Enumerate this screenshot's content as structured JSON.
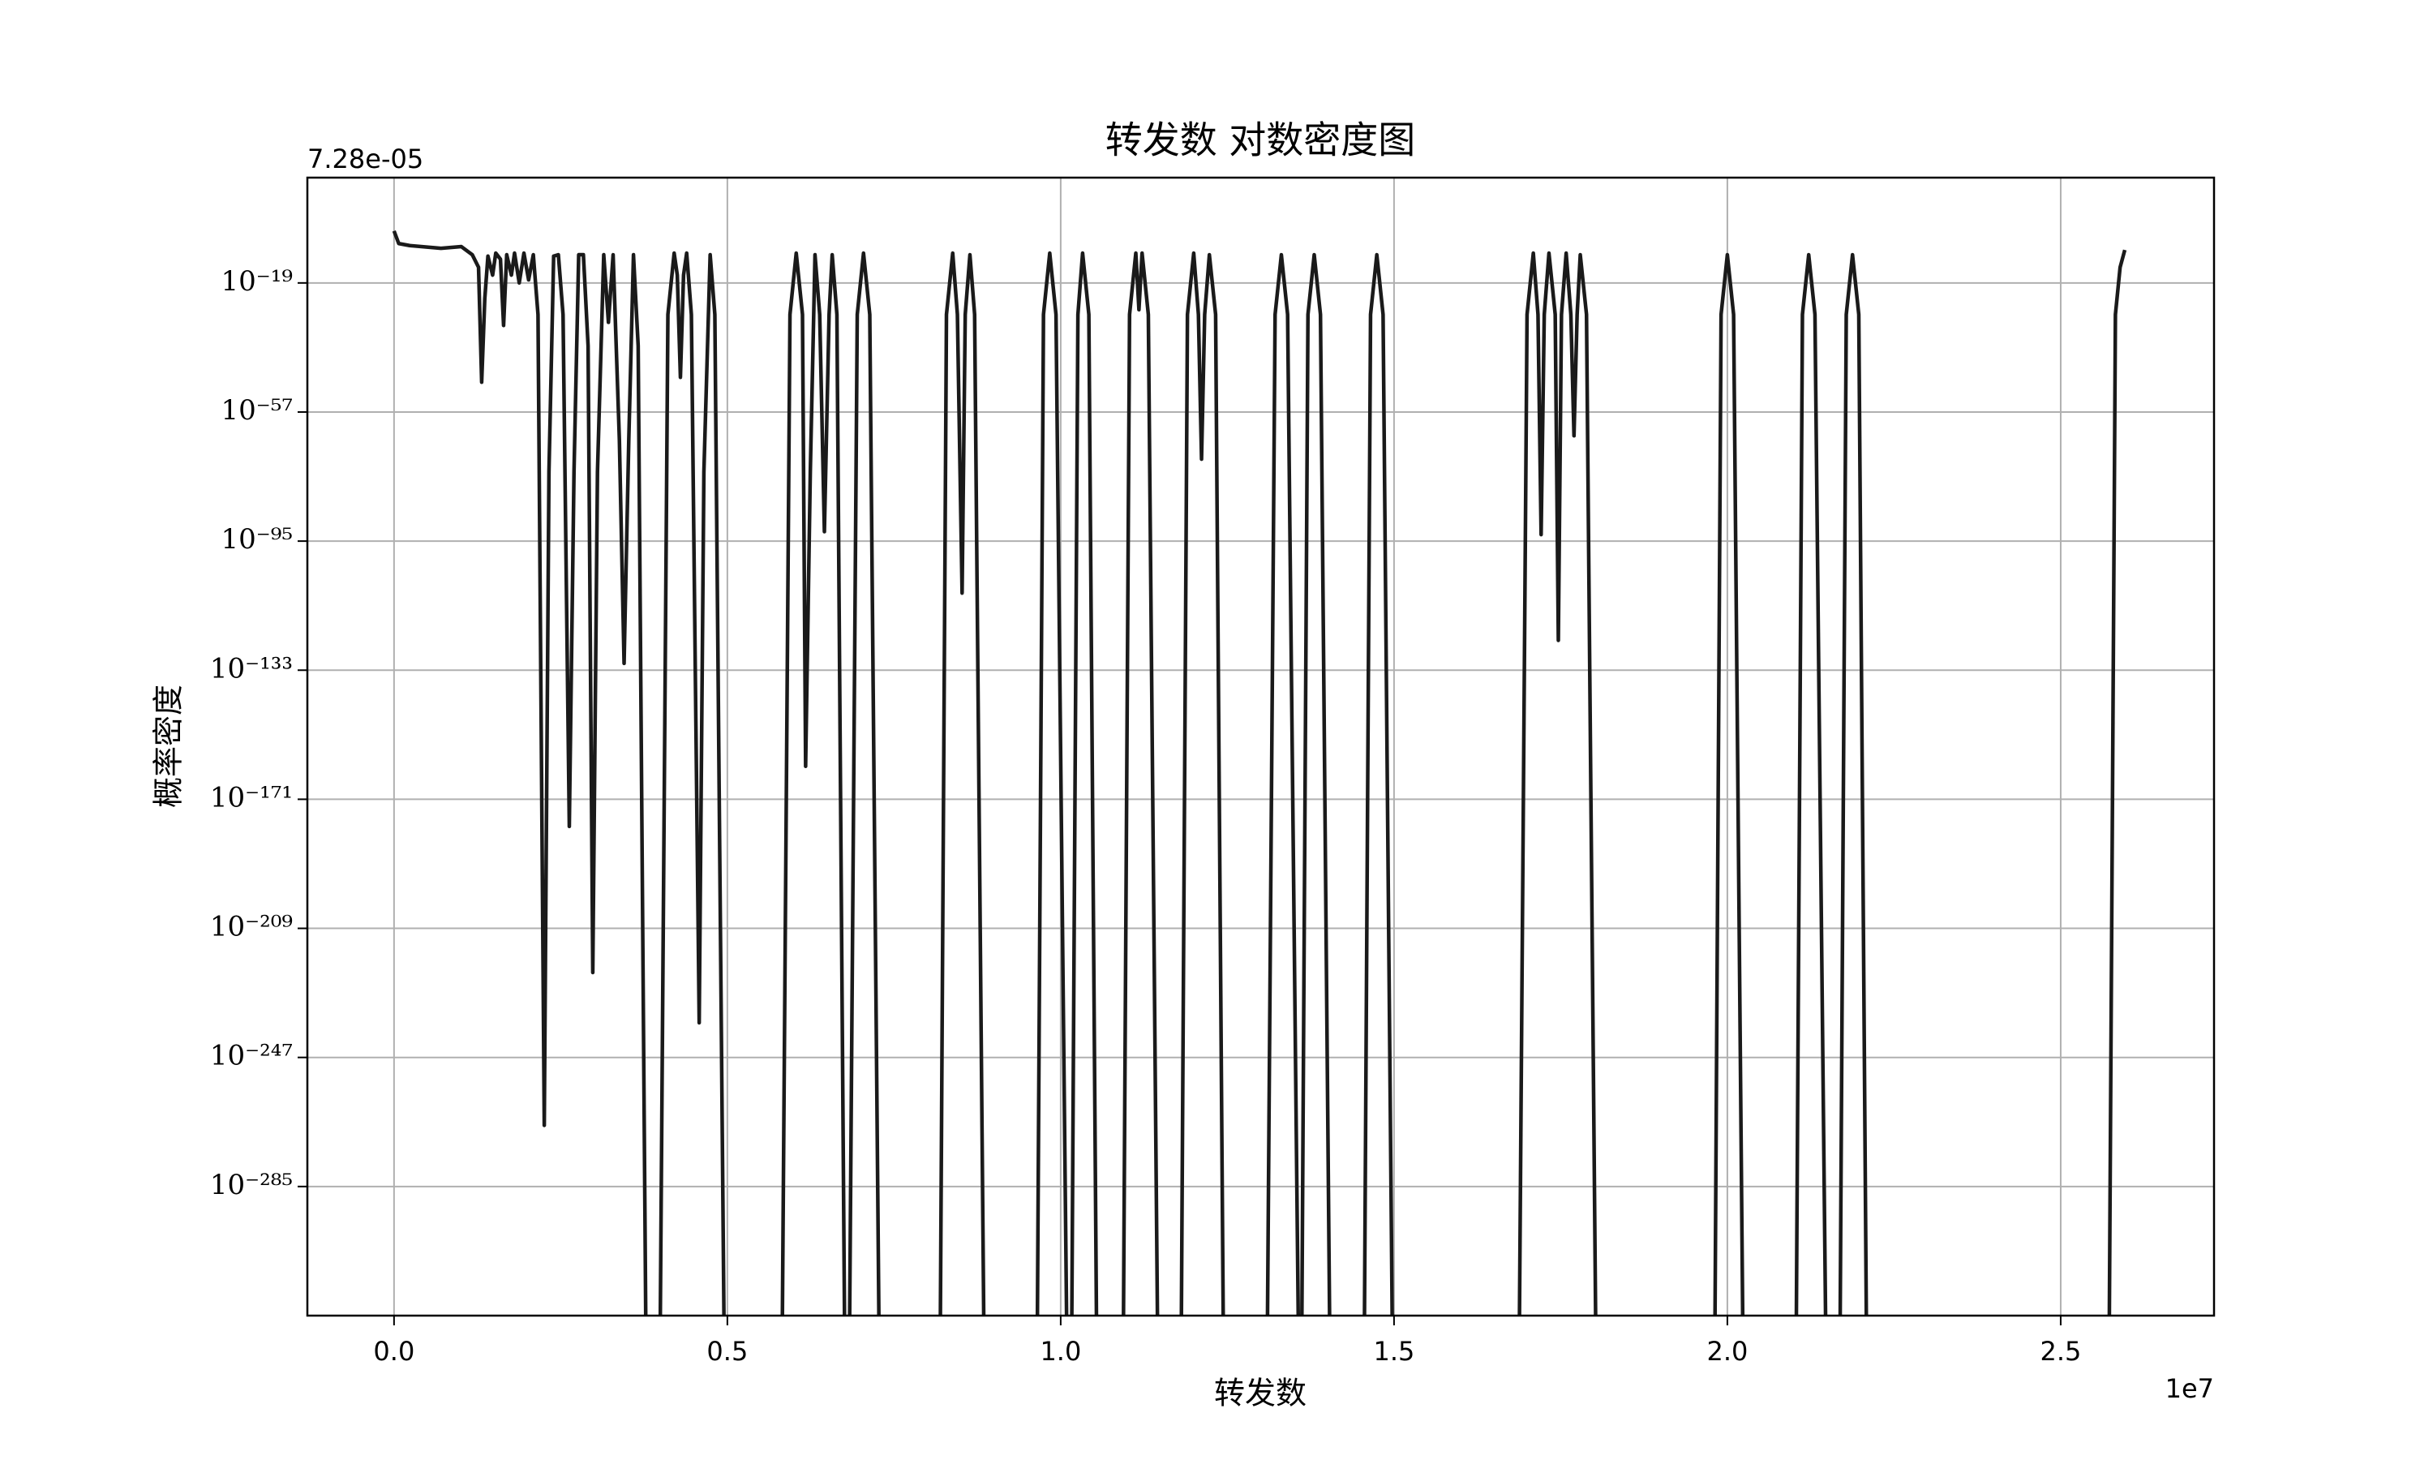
{
  "chart_data": {
    "type": "line",
    "title": "转发数 对数密度图",
    "x_label": "转发数",
    "y_label": "概率密度",
    "x_offset_label": "1e7",
    "y_offset_label": "7.28e-05",
    "log_y": true,
    "grid": true,
    "xlim": [
      -1300000,
      27300000
    ],
    "xticks": [
      {
        "value": 0,
        "label": "0.0"
      },
      {
        "value": 5000000,
        "label": "0.5"
      },
      {
        "value": 10000000,
        "label": "1.0"
      },
      {
        "value": 15000000,
        "label": "1.5"
      },
      {
        "value": 20000000,
        "label": "2.0"
      },
      {
        "value": 25000000,
        "label": "2.5"
      }
    ],
    "ylim": [
      1e-323,
      1000000000000.0
    ],
    "yticks": [
      {
        "value": 1e-19,
        "label": "10⁻¹⁹"
      },
      {
        "value": 1e-57,
        "label": "10⁻⁵⁷"
      },
      {
        "value": 1e-95,
        "label": "10⁻⁹⁵"
      },
      {
        "value": 1e-133,
        "label": "10⁻¹³³"
      },
      {
        "value": 1e-171,
        "label": "10⁻¹⁷¹"
      },
      {
        "value": 1e-209,
        "label": "10⁻²⁰⁹"
      },
      {
        "value": 1e-247,
        "label": "10⁻²⁴⁷"
      },
      {
        "value": 1e-285,
        "label": "10⁻²⁸⁵"
      }
    ],
    "series": [
      {
        "color": "#1a1a1a",
        "x": [
          0,
          70400,
          234700,
          704200,
          1009400,
          1173700,
          1267600,
          1314500,
          1361500,
          1408400,
          1478900,
          1525800,
          1596200,
          1643200,
          1690100,
          1760600,
          1807500,
          1877900,
          1948300,
          2018800,
          2089200,
          2159600,
          2253500,
          2323900,
          2394300,
          2464800,
          2535200,
          2629100,
          2699500,
          2769900,
          2840400,
          2910800,
          2981200,
          3051600,
          3145500,
          3215900,
          3286400,
          3380300,
          3450700,
          3521100,
          3591500,
          3662000,
          3779300,
          3990600,
          4108000,
          4201800,
          4248800,
          4295700,
          4342700,
          4389600,
          4460100,
          4577400,
          4647900,
          4741800,
          4812200,
          4953000,
          5821600,
          5939000,
          6032800,
          6126700,
          6173700,
          6244100,
          6314500,
          6385000,
          6455400,
          6525800,
          6572300,
          6643100,
          6760500,
          6830900,
          6948300,
          7042200,
          7136100,
          7276900,
          8192400,
          8286300,
          8380200,
          8450600,
          8521100,
          8568000,
          8638400,
          8708900,
          8849800,
          9647800,
          9741700,
          9835600,
          9929500,
          10093400,
          10164000,
          10258200,
          10328600,
          10422400,
          10539800,
          10939000,
          11032800,
          11126700,
          11173600,
          11220600,
          11314500,
          11455400,
          11807500,
          11901300,
          11995200,
          12065700,
          12112600,
          12159600,
          12230000,
          12323900,
          12441200,
          13098500,
          13215900,
          13309800,
          13403700,
          13568000,
          13614900,
          13708800,
          13802700,
          13896600,
          14037500,
          14553900,
          14647800,
          14741700,
          14835600,
          14976500,
          16877800,
          16995200,
          17089100,
          17159500,
          17206400,
          17253400,
          17323800,
          17417700,
          17464600,
          17511600,
          17582000,
          17652400,
          17699400,
          17746300,
          17793300,
          17887200,
          18028200,
          19812000,
          19905700,
          19999700,
          20093500,
          20234400,
          21032200,
          21126100,
          21220000,
          21313900,
          21478200,
          21689500,
          21783400,
          21877300,
          21971300,
          22088000,
          25726800,
          25820700,
          25891100,
          25961600
        ],
        "values": [
          0.0002,
          4e-08,
          1e-08,
          1.6e-09,
          5e-09,
          2e-11,
          4e-15,
          6e-49,
          2.5e-24,
          8e-12,
          2e-17,
          6e-11,
          1e-12,
          3e-32,
          2e-11,
          2e-17,
          6e-11,
          1e-19,
          6e-11,
          8e-19,
          2e-11,
          5e-29,
          1e-267,
          2.5e-75,
          8e-12,
          2e-11,
          5e-29,
          1e-179,
          2.5e-75,
          2e-11,
          2e-11,
          3e-38,
          1e-222,
          2.5e-75,
          2e-11,
          2.5e-31,
          2e-11,
          5e-66,
          1e-131,
          5e-66,
          2e-11,
          3e-38,
          0,
          0,
          5e-29,
          6e-11,
          2e-17,
          1.6e-47,
          2e-17,
          6e-11,
          5e-29,
          1.6e-237,
          2.5e-75,
          2e-11,
          5e-29,
          0,
          0,
          5e-29,
          6e-11,
          5e-29,
          5e-162,
          2.5e-75,
          2e-11,
          5e-29,
          6e-93,
          5e-29,
          2e-11,
          5e-29,
          0,
          0,
          5e-29,
          6e-11,
          5e-29,
          0,
          0,
          5e-29,
          6e-11,
          5e-29,
          5e-111,
          5e-29,
          2e-11,
          5e-29,
          0,
          0,
          5e-29,
          6e-11,
          5e-29,
          0,
          0,
          5e-29,
          6e-11,
          5e-29,
          0,
          0,
          5e-29,
          6e-11,
          1.3e-27,
          6e-11,
          5e-29,
          0,
          0,
          5e-29,
          6e-11,
          5e-29,
          1.3e-71,
          5e-29,
          2e-11,
          5e-29,
          0,
          0,
          5e-29,
          2e-11,
          5e-29,
          0,
          0,
          5e-29,
          2e-11,
          5e-29,
          0,
          0,
          5e-29,
          2e-11,
          5e-29,
          0,
          0,
          5e-29,
          6e-11,
          5e-29,
          8e-94,
          5e-29,
          6e-11,
          5e-29,
          6e-125,
          5e-29,
          6e-11,
          5e-29,
          1e-64,
          5e-29,
          2e-11,
          5e-29,
          0,
          0,
          5e-29,
          2e-11,
          5e-29,
          0,
          0,
          5e-29,
          2e-11,
          5e-29,
          0,
          0,
          5e-29,
          2e-11,
          5e-29,
          0,
          0,
          5e-29,
          4e-15,
          5e-10
        ]
      }
    ]
  }
}
